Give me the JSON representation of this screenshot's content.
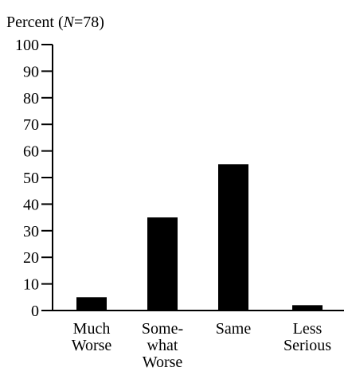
{
  "chart_data": {
    "type": "bar",
    "title": "",
    "ylabel_prefix": "Percent (",
    "ylabel_n": "N",
    "ylabel_suffix": "=78)",
    "xlabel": "",
    "ylim": [
      0,
      100
    ],
    "yticks": [
      0,
      10,
      20,
      30,
      40,
      50,
      60,
      70,
      80,
      90,
      100
    ],
    "ytick_labels": [
      "0",
      "10",
      "20",
      "30",
      "40",
      "50",
      "60",
      "70",
      "80",
      "90",
      "100"
    ],
    "categories": [
      "Much Worse",
      "Somewhat Worse",
      "Same",
      "Less Serious"
    ],
    "category_label_lines": [
      [
        "Much",
        "Worse"
      ],
      [
        "Some-",
        "what",
        "Worse"
      ],
      [
        "Same"
      ],
      [
        "Less",
        "Serious"
      ]
    ],
    "values": [
      5,
      35,
      55,
      2
    ],
    "bar_color": "#000000",
    "grid": false,
    "legend": "none"
  }
}
